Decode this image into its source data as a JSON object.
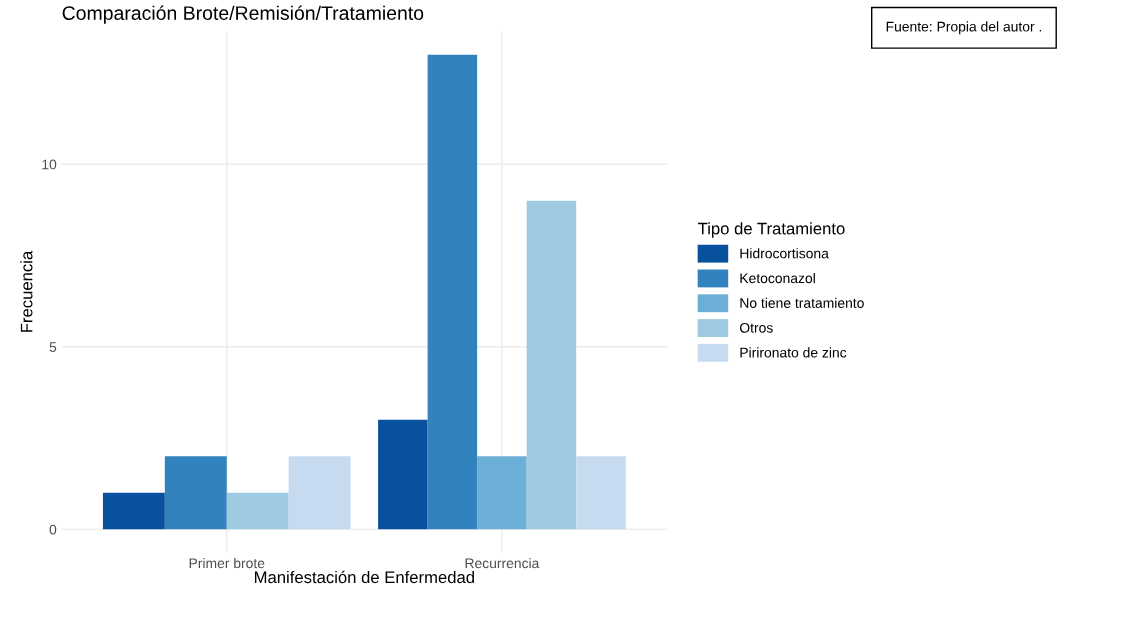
{
  "chart_data": {
    "type": "bar",
    "title": "Comparación Brote/Remisión/Tratamiento",
    "xlabel": "Manifestación de Enfermedad",
    "ylabel": "Frecuencia",
    "legend_title": "Tipo de Tratamiento",
    "categories": [
      "Primer brote",
      "Recurrencia"
    ],
    "series": [
      {
        "name": "Hidrocortisona",
        "color": "#08519c",
        "values": [
          1,
          3
        ]
      },
      {
        "name": "Ketoconazol",
        "color": "#3182bd",
        "values": [
          2,
          13
        ]
      },
      {
        "name": "No tiene tratamiento",
        "color": "#6baed6",
        "values": [
          null,
          2
        ]
      },
      {
        "name": "Otros",
        "color": "#9ecae1",
        "values": [
          1,
          9
        ]
      },
      {
        "name": "Pirironato de zinc",
        "color": "#c6dbef",
        "values": [
          2,
          2
        ]
      }
    ],
    "ylim": [
      -0.65,
      13.65
    ],
    "yticks": [
      0,
      5,
      10
    ],
    "grid": true,
    "legend": "right",
    "annotations": [
      "Fuente: Propia del autor ."
    ]
  }
}
